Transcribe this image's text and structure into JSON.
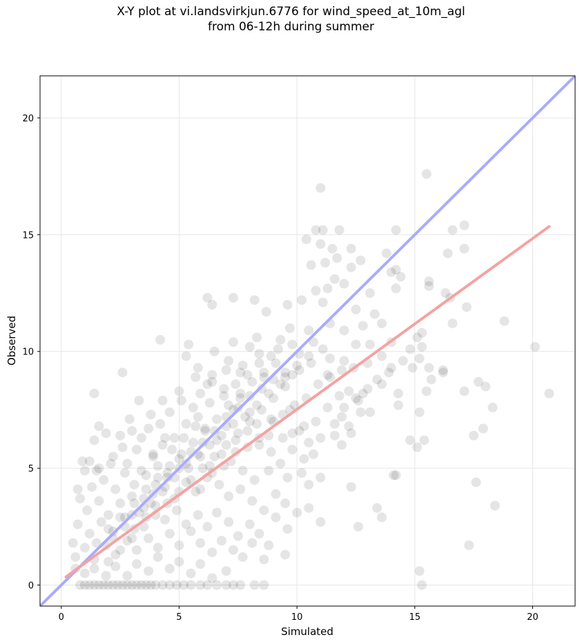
{
  "chart_data": {
    "type": "scatter",
    "title": "X-Y plot at vi.landsvirkjun.6776 for wind_speed_at_10m_agl",
    "subtitle": "from 06-12h during summer",
    "xlabel": "Simulated",
    "ylabel": "Observed",
    "xlim": [
      -0.9,
      21.8
    ],
    "ylim": [
      -0.9,
      21.8
    ],
    "xticks": [
      0,
      5,
      10,
      15,
      20
    ],
    "yticks": [
      0,
      5,
      10,
      15,
      20
    ],
    "grid": true,
    "colors": {
      "points": "#000000",
      "identity_line": "#aaaaff",
      "fit_line": "#f4a3a3"
    },
    "identity_line": {
      "x": [
        -0.9,
        21.8
      ],
      "y": [
        -0.9,
        21.8
      ]
    },
    "fit_line": {
      "x": [
        0.2,
        20.7
      ],
      "y": [
        0.35,
        15.35
      ]
    },
    "points": [
      [
        15.5,
        17.6
      ],
      [
        11.0,
        17.0
      ],
      [
        10.8,
        15.2
      ],
      [
        11.1,
        15.2
      ],
      [
        11.8,
        15.2
      ],
      [
        14.2,
        15.2
      ],
      [
        16.6,
        15.2
      ],
      [
        17.1,
        15.4
      ],
      [
        10.4,
        14.8
      ],
      [
        11.0,
        14.6
      ],
      [
        11.5,
        14.4
      ],
      [
        12.3,
        14.4
      ],
      [
        13.8,
        14.2
      ],
      [
        16.4,
        14.2
      ],
      [
        17.1,
        14.4
      ],
      [
        11.7,
        14.0
      ],
      [
        12.7,
        13.9
      ],
      [
        10.6,
        13.7
      ],
      [
        11.2,
        13.8
      ],
      [
        12.3,
        13.6
      ],
      [
        14.0,
        13.4
      ],
      [
        14.2,
        13.5
      ],
      [
        14.4,
        13.2
      ],
      [
        11.6,
        13.1
      ],
      [
        12.0,
        12.9
      ],
      [
        15.6,
        13.0
      ],
      [
        15.6,
        12.8
      ],
      [
        16.3,
        12.5
      ],
      [
        10.8,
        12.6
      ],
      [
        11.3,
        12.7
      ],
      [
        13.1,
        12.5
      ],
      [
        14.2,
        12.7
      ],
      [
        16.5,
        12.3
      ],
      [
        7.3,
        12.3
      ],
      [
        6.2,
        12.3
      ],
      [
        6.4,
        12.0
      ],
      [
        8.2,
        12.2
      ],
      [
        9.6,
        12.0
      ],
      [
        11.1,
        12.1
      ],
      [
        10.2,
        12.2
      ],
      [
        12.5,
        11.8
      ],
      [
        13.3,
        11.6
      ],
      [
        17.2,
        11.9
      ],
      [
        18.8,
        11.3
      ],
      [
        16.6,
        11.2
      ],
      [
        13.6,
        11.2
      ],
      [
        12.8,
        11.1
      ],
      [
        11.4,
        11.2
      ],
      [
        9.7,
        11.0
      ],
      [
        8.7,
        11.7
      ],
      [
        10.5,
        10.9
      ],
      [
        10.7,
        10.4
      ],
      [
        12.0,
        10.9
      ],
      [
        12.5,
        10.3
      ],
      [
        13.1,
        10.3
      ],
      [
        14.0,
        10.4
      ],
      [
        15.1,
        10.6
      ],
      [
        15.3,
        10.8
      ],
      [
        15.3,
        10.2
      ],
      [
        20.1,
        10.2
      ],
      [
        4.2,
        10.5
      ],
      [
        5.4,
        10.3
      ],
      [
        7.3,
        10.4
      ],
      [
        8.0,
        10.2
      ],
      [
        8.3,
        10.6
      ],
      [
        9.3,
        10.5
      ],
      [
        9.8,
        10.3
      ],
      [
        6.5,
        10.0
      ],
      [
        7.1,
        9.6
      ],
      [
        8.9,
        9.8
      ],
      [
        10.1,
        9.9
      ],
      [
        11.4,
        9.7
      ],
      [
        12.0,
        9.6
      ],
      [
        13.0,
        9.5
      ],
      [
        14.0,
        9.3
      ],
      [
        14.9,
        9.3
      ],
      [
        15.2,
        9.7
      ],
      [
        15.6,
        9.3
      ],
      [
        16.2,
        9.2
      ],
      [
        17.7,
        8.7
      ],
      [
        15.5,
        8.3
      ],
      [
        17.1,
        8.3
      ],
      [
        15.7,
        8.8
      ],
      [
        16.2,
        9.1
      ],
      [
        20.7,
        8.2
      ],
      [
        18.0,
        8.5
      ],
      [
        13.6,
        8.6
      ],
      [
        12.8,
        8.2
      ],
      [
        14.3,
        8.2
      ],
      [
        1.4,
        8.2
      ],
      [
        2.6,
        9.1
      ],
      [
        3.3,
        7.9
      ],
      [
        5.3,
        9.8
      ],
      [
        5.8,
        9.3
      ],
      [
        6.4,
        9.0
      ],
      [
        7.6,
        9.1
      ],
      [
        8.6,
        8.9
      ],
      [
        9.5,
        8.9
      ],
      [
        10.1,
        9.2
      ],
      [
        11.3,
        9.0
      ],
      [
        12.6,
        7.9
      ],
      [
        11.9,
        7.2
      ],
      [
        12.7,
        7.4
      ],
      [
        13.1,
        7.4
      ],
      [
        14.3,
        7.7
      ],
      [
        15.2,
        7.4
      ],
      [
        17.9,
        6.7
      ],
      [
        17.5,
        6.4
      ],
      [
        15.4,
        6.2
      ],
      [
        14.8,
        6.2
      ],
      [
        15.1,
        5.9
      ],
      [
        18.3,
        7.6
      ],
      [
        12.2,
        6.8
      ],
      [
        12.3,
        6.5
      ],
      [
        11.9,
        6.0
      ],
      [
        11.6,
        6.4
      ],
      [
        10.5,
        6.1
      ],
      [
        10.1,
        6.6
      ],
      [
        9.4,
        6.3
      ],
      [
        8.8,
        6.4
      ],
      [
        9.0,
        7.0
      ],
      [
        9.7,
        7.5
      ],
      [
        8.3,
        6.9
      ],
      [
        8.0,
        7.4
      ],
      [
        7.6,
        8.0
      ],
      [
        7.3,
        7.5
      ],
      [
        6.9,
        8.4
      ],
      [
        6.4,
        8.7
      ],
      [
        5.9,
        8.2
      ],
      [
        5.6,
        7.6
      ],
      [
        5.1,
        7.9
      ],
      [
        4.6,
        7.4
      ],
      [
        4.2,
        6.9
      ],
      [
        3.7,
        6.7
      ],
      [
        3.4,
        6.3
      ],
      [
        2.9,
        7.1
      ],
      [
        2.5,
        6.4
      ],
      [
        1.9,
        6.5
      ],
      [
        1.4,
        6.2
      ],
      [
        1.6,
        6.8
      ],
      [
        1.2,
        5.3
      ],
      [
        0.9,
        5.3
      ],
      [
        1.0,
        4.9
      ],
      [
        0.7,
        4.1
      ],
      [
        1.5,
        4.9
      ],
      [
        2.2,
        5.5
      ],
      [
        2.8,
        5.2
      ],
      [
        3.2,
        5.8
      ],
      [
        3.9,
        5.5
      ],
      [
        4.3,
        6.0
      ],
      [
        4.7,
        5.8
      ],
      [
        5.2,
        6.3
      ],
      [
        5.7,
        6.8
      ],
      [
        6.1,
        6.6
      ],
      [
        6.6,
        6.2
      ],
      [
        7.0,
        6.8
      ],
      [
        7.4,
        6.2
      ],
      [
        7.9,
        6.6
      ],
      [
        8.4,
        6.0
      ],
      [
        8.9,
        5.7
      ],
      [
        9.3,
        5.2
      ],
      [
        9.8,
        5.8
      ],
      [
        10.3,
        5.4
      ],
      [
        10.7,
        5.6
      ],
      [
        10.2,
        4.8
      ],
      [
        9.6,
        4.6
      ],
      [
        10.5,
        4.3
      ],
      [
        11.0,
        4.6
      ],
      [
        12.3,
        4.2
      ],
      [
        8.8,
        4.9
      ],
      [
        8.2,
        4.5
      ],
      [
        7.7,
        4.9
      ],
      [
        7.2,
        5.3
      ],
      [
        6.8,
        5.6
      ],
      [
        6.3,
        5.1
      ],
      [
        5.9,
        5.5
      ],
      [
        5.4,
        5.0
      ],
      [
        5.0,
        5.4
      ],
      [
        4.5,
        4.8
      ],
      [
        4.1,
        5.1
      ],
      [
        3.6,
        4.7
      ],
      [
        3.1,
        4.3
      ],
      [
        2.7,
        4.8
      ],
      [
        2.3,
        4.1
      ],
      [
        1.8,
        4.5
      ],
      [
        1.3,
        4.2
      ],
      [
        0.8,
        3.7
      ],
      [
        1.1,
        3.2
      ],
      [
        1.6,
        3.6
      ],
      [
        2.0,
        3.0
      ],
      [
        2.5,
        3.5
      ],
      [
        3.0,
        3.8
      ],
      [
        3.5,
        3.3
      ],
      [
        3.9,
        3.9
      ],
      [
        4.4,
        4.2
      ],
      [
        4.8,
        3.7
      ],
      [
        5.3,
        4.4
      ],
      [
        5.7,
        4.0
      ],
      [
        6.2,
        4.6
      ],
      [
        6.7,
        4.3
      ],
      [
        7.1,
        3.8
      ],
      [
        7.6,
        4.1
      ],
      [
        8.1,
        3.6
      ],
      [
        8.6,
        3.2
      ],
      [
        9.1,
        3.9
      ],
      [
        9.5,
        3.5
      ],
      [
        10.0,
        3.1
      ],
      [
        10.5,
        3.3
      ],
      [
        11.0,
        2.7
      ],
      [
        12.6,
        2.5
      ],
      [
        13.4,
        3.3
      ],
      [
        13.6,
        2.9
      ],
      [
        14.1,
        4.7
      ],
      [
        14.2,
        4.7
      ],
      [
        17.6,
        4.4
      ],
      [
        18.4,
        3.4
      ],
      [
        17.3,
        1.7
      ],
      [
        15.2,
        0.6
      ],
      [
        15.3,
        0.0
      ],
      [
        9.6,
        2.4
      ],
      [
        9.1,
        2.9
      ],
      [
        9.5,
        1.3
      ],
      [
        8.8,
        1.7
      ],
      [
        8.4,
        2.2
      ],
      [
        8.0,
        2.6
      ],
      [
        7.5,
        2.1
      ],
      [
        7.1,
        2.7
      ],
      [
        6.6,
        3.1
      ],
      [
        6.2,
        2.5
      ],
      [
        5.8,
        3.0
      ],
      [
        5.3,
        2.6
      ],
      [
        4.9,
        3.2
      ],
      [
        4.4,
        2.8
      ],
      [
        4.0,
        3.4
      ],
      [
        3.6,
        2.9
      ],
      [
        3.1,
        2.4
      ],
      [
        2.7,
        2.9
      ],
      [
        2.2,
        2.3
      ],
      [
        1.7,
        2.7
      ],
      [
        1.2,
        2.2
      ],
      [
        0.7,
        2.6
      ],
      [
        0.5,
        1.8
      ],
      [
        0.6,
        1.2
      ],
      [
        1.0,
        1.6
      ],
      [
        1.4,
        1.1
      ],
      [
        1.9,
        1.7
      ],
      [
        2.3,
        1.3
      ],
      [
        2.8,
        1.9
      ],
      [
        3.2,
        1.5
      ],
      [
        3.7,
        2.0
      ],
      [
        4.1,
        1.6
      ],
      [
        4.6,
        2.2
      ],
      [
        5.0,
        1.7
      ],
      [
        5.5,
        2.3
      ],
      [
        5.9,
        1.8
      ],
      [
        6.4,
        1.4
      ],
      [
        6.8,
        1.9
      ],
      [
        7.3,
        1.5
      ],
      [
        7.7,
        1.2
      ],
      [
        8.1,
        1.8
      ],
      [
        8.6,
        1.1
      ],
      [
        7.0,
        0.6
      ],
      [
        6.4,
        0.3
      ],
      [
        5.9,
        0.9
      ],
      [
        5.5,
        0.5
      ],
      [
        5.0,
        1.0
      ],
      [
        4.6,
        0.7
      ],
      [
        4.1,
        1.2
      ],
      [
        3.7,
        0.6
      ],
      [
        3.2,
        0.9
      ],
      [
        2.8,
        0.4
      ],
      [
        2.3,
        0.8
      ],
      [
        1.9,
        0.4
      ],
      [
        1.4,
        0.7
      ],
      [
        1.0,
        0.5
      ],
      [
        0.6,
        0.7
      ],
      [
        0.8,
        0.0
      ],
      [
        1.0,
        0.0
      ],
      [
        1.2,
        0.0
      ],
      [
        1.4,
        0.0
      ],
      [
        1.6,
        0.0
      ],
      [
        1.8,
        0.0
      ],
      [
        2.0,
        0.0
      ],
      [
        2.2,
        0.0
      ],
      [
        2.4,
        0.0
      ],
      [
        2.6,
        0.0
      ],
      [
        2.8,
        0.0
      ],
      [
        3.0,
        0.0
      ],
      [
        3.2,
        0.0
      ],
      [
        3.4,
        0.0
      ],
      [
        3.6,
        0.0
      ],
      [
        3.8,
        0.0
      ],
      [
        4.0,
        0.0
      ],
      [
        4.3,
        0.0
      ],
      [
        4.6,
        0.0
      ],
      [
        4.9,
        0.0
      ],
      [
        5.2,
        0.0
      ],
      [
        5.5,
        0.0
      ],
      [
        5.9,
        0.0
      ],
      [
        6.2,
        0.0
      ],
      [
        6.6,
        0.0
      ],
      [
        7.0,
        0.0
      ],
      [
        7.3,
        0.0
      ],
      [
        7.6,
        0.0
      ],
      [
        8.2,
        0.0
      ],
      [
        8.6,
        0.0
      ],
      [
        2.0,
        1.0
      ],
      [
        2.5,
        1.5
      ],
      [
        3.0,
        2.0
      ],
      [
        3.5,
        2.5
      ],
      [
        4.0,
        3.0
      ],
      [
        4.5,
        3.5
      ],
      [
        5.0,
        4.0
      ],
      [
        5.5,
        4.5
      ],
      [
        6.0,
        5.0
      ],
      [
        6.5,
        5.5
      ],
      [
        7.0,
        6.0
      ],
      [
        7.5,
        6.5
      ],
      [
        8.0,
        7.0
      ],
      [
        8.5,
        7.5
      ],
      [
        9.0,
        8.0
      ],
      [
        9.5,
        8.5
      ],
      [
        3.0,
        3.0
      ],
      [
        3.5,
        3.7
      ],
      [
        4.0,
        4.3
      ],
      [
        4.5,
        4.6
      ],
      [
        5.0,
        5.0
      ],
      [
        5.5,
        5.7
      ],
      [
        6.0,
        6.1
      ],
      [
        6.5,
        6.6
      ],
      [
        7.0,
        7.2
      ],
      [
        7.5,
        7.6
      ],
      [
        8.0,
        8.1
      ],
      [
        8.5,
        8.4
      ],
      [
        9.0,
        8.8
      ],
      [
        9.5,
        9.1
      ],
      [
        10.0,
        9.4
      ],
      [
        10.5,
        9.8
      ],
      [
        2.2,
        2.0
      ],
      [
        2.7,
        2.5
      ],
      [
        3.3,
        3.1
      ],
      [
        3.8,
        3.5
      ],
      [
        4.3,
        4.0
      ],
      [
        4.8,
        4.6
      ],
      [
        5.3,
        5.2
      ],
      [
        5.8,
        5.6
      ],
      [
        6.3,
        6.0
      ],
      [
        6.8,
        6.4
      ],
      [
        7.3,
        6.9
      ],
      [
        7.8,
        7.2
      ],
      [
        8.3,
        7.7
      ],
      [
        8.8,
        8.2
      ],
      [
        9.3,
        8.6
      ],
      [
        9.8,
        9.0
      ],
      [
        1.5,
        1.8
      ],
      [
        2.0,
        2.4
      ],
      [
        2.5,
        2.9
      ],
      [
        3.1,
        3.5
      ],
      [
        3.6,
        4.1
      ],
      [
        4.1,
        4.6
      ],
      [
        4.6,
        5.1
      ],
      [
        5.1,
        5.6
      ],
      [
        5.6,
        6.1
      ],
      [
        6.1,
        6.7
      ],
      [
        6.6,
        7.1
      ],
      [
        7.1,
        7.7
      ],
      [
        7.6,
        8.2
      ],
      [
        8.1,
        8.7
      ],
      [
        8.6,
        9.1
      ],
      [
        9.1,
        9.5
      ],
      [
        4.8,
        6.3
      ],
      [
        5.3,
        6.9
      ],
      [
        5.8,
        7.2
      ],
      [
        6.3,
        7.8
      ],
      [
        6.9,
        8.1
      ],
      [
        7.4,
        8.6
      ],
      [
        7.9,
        9.0
      ],
      [
        8.4,
        9.5
      ],
      [
        3.4,
        4.9
      ],
      [
        3.9,
        5.6
      ],
      [
        4.4,
        6.3
      ],
      [
        5.9,
        4.1
      ],
      [
        6.4,
        4.8
      ],
      [
        6.9,
        5.1
      ],
      [
        7.4,
        5.7
      ],
      [
        7.9,
        5.9
      ],
      [
        8.4,
        6.3
      ],
      [
        8.9,
        7.1
      ],
      [
        9.4,
        7.3
      ],
      [
        9.9,
        7.7
      ],
      [
        10.4,
        8.0
      ],
      [
        10.9,
        8.6
      ],
      [
        11.4,
        8.9
      ],
      [
        11.9,
        9.2
      ],
      [
        10.8,
        7.0
      ],
      [
        11.3,
        7.6
      ],
      [
        11.8,
        8.1
      ],
      [
        12.2,
        8.3
      ],
      [
        10.3,
        6.8
      ],
      [
        9.8,
        6.5
      ],
      [
        11.0,
        6.3
      ],
      [
        11.6,
        6.9
      ],
      [
        12.0,
        7.6
      ],
      [
        12.5,
        8.0
      ],
      [
        13.0,
        8.4
      ],
      [
        13.4,
        8.8
      ],
      [
        13.9,
        9.1
      ],
      [
        14.5,
        9.6
      ],
      [
        14.8,
        10.1
      ],
      [
        13.6,
        9.8
      ],
      [
        12.4,
        9.3
      ],
      [
        11.1,
        10.1
      ],
      [
        10.6,
        9.5
      ],
      [
        9.2,
        10.1
      ],
      [
        8.4,
        9.9
      ],
      [
        7.7,
        9.4
      ],
      [
        7.0,
        9.2
      ],
      [
        6.2,
        8.6
      ],
      [
        5.7,
        8.9
      ],
      [
        5.0,
        8.3
      ],
      [
        4.3,
        7.9
      ],
      [
        3.8,
        7.3
      ],
      [
        3.0,
        6.6
      ],
      [
        2.6,
        5.9
      ],
      [
        2.1,
        5.2
      ],
      [
        1.6,
        5.0
      ]
    ]
  }
}
